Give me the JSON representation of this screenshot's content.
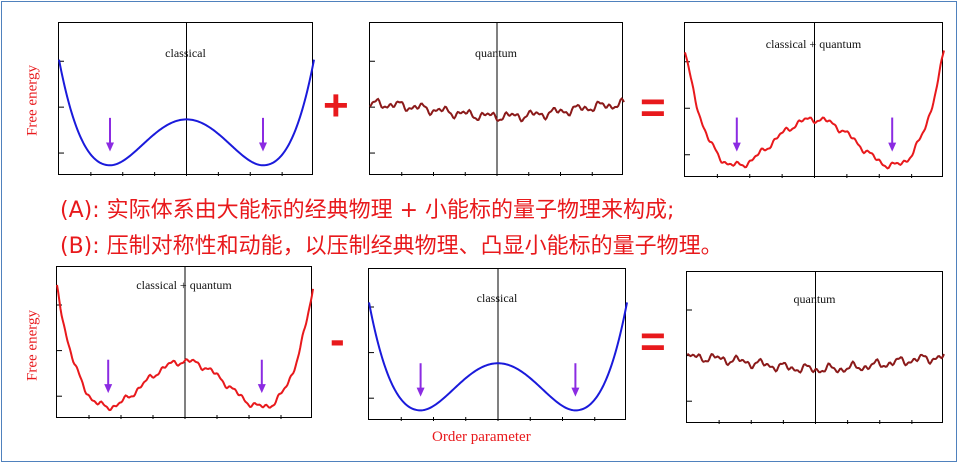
{
  "panels": {
    "top_classical_title": "classical",
    "top_quantum_title": "quantum",
    "top_sum_title": "classical + quantum",
    "bottom_sum_title": "classical + quantum",
    "bottom_classical_title": "classical",
    "bottom_quantum_title": "quantum"
  },
  "axes": {
    "ylabel_top": "Free energy",
    "ylabel_bottom": "Free energy",
    "xlabel": "Order parameter"
  },
  "operators": {
    "top_plus": "+",
    "top_equals": "=",
    "bottom_minus": "-",
    "bottom_equals": "="
  },
  "text": {
    "line_a": "(A): 实际体系由大能标的经典物理 + 小能标的量子物理来构成;",
    "line_b": "(B): 压制对称性和动能，以压制经典物理、凸显小能标的量子物理。"
  },
  "colors": {
    "classical": "#1a1adb",
    "combined": "#e8191c",
    "quantum": "#8b1a1a",
    "arrow": "#8b2be2",
    "text": "#e8191c",
    "frame": "#4f81bd"
  }
}
